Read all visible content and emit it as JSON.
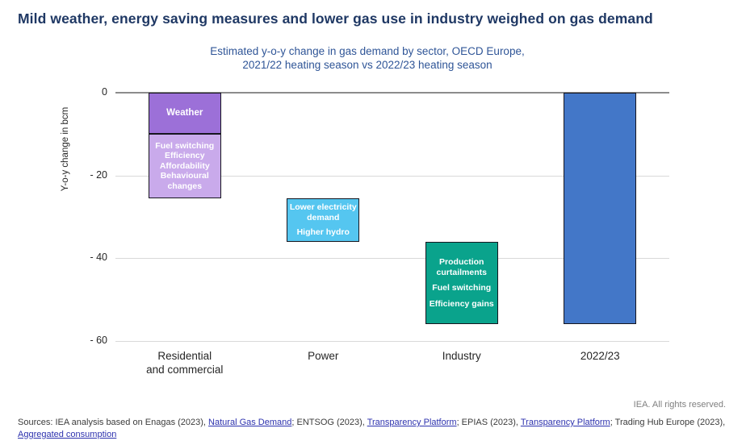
{
  "header": {
    "title": "Mild weather, energy saving measures and lower gas use in industry weighed on gas demand",
    "subtitle_line1": "Estimated y-o-y change in gas demand by sector, OECD Europe,",
    "subtitle_line2": "2021/22 heating season vs 2022/23 heating season"
  },
  "chart_data": {
    "type": "bar",
    "subtype": "waterfall",
    "title": "Estimated y-o-y change in gas demand by sector, OECD Europe, 2021/22 heating season vs 2022/23 heating season",
    "xlabel": "",
    "ylabel": "Y-o-y change in bcm",
    "ylim": [
      -60,
      0
    ],
    "yticks": [
      0,
      -20,
      -40,
      -60
    ],
    "ytick_labels": [
      "0",
      "- 20",
      "- 40",
      "- 60"
    ],
    "grid": "horizontal",
    "gridline_color": "#d9d9d9",
    "zero_line_color": "#8c8c8c",
    "categories": [
      "Residential\nand commercial",
      "Power",
      "Industry",
      "2022/23"
    ],
    "unit": "bcm",
    "segments": [
      {
        "category": 0,
        "from": 0,
        "to": -10,
        "color": "#9c70d8",
        "labels": [
          "Weather"
        ],
        "label_size": "large",
        "label_gap": 2
      },
      {
        "category": 0,
        "from": -10,
        "to": -25.5,
        "color": "#c9aaeb",
        "labels": [
          "Fuel switching",
          "Efficiency",
          "Affordability",
          "Behavioural changes"
        ],
        "label_size": "normal",
        "label_gap": 0
      },
      {
        "category": 1,
        "from": -25.5,
        "to": -36,
        "color": "#55c6f0",
        "labels": [
          "Lower electricity demand",
          "Higher hydro"
        ],
        "label_size": "normal",
        "label_gap": 6
      },
      {
        "category": 2,
        "from": -36,
        "to": -56,
        "color": "#0aa38c",
        "labels": [
          "Production curtailments",
          "Fuel switching",
          "Efficiency gains"
        ],
        "label_size": "normal",
        "label_gap": 7
      },
      {
        "category": 3,
        "from": 0,
        "to": -56,
        "color": "#4377c8",
        "labels": [],
        "label_size": "normal",
        "label_gap": 0
      }
    ]
  },
  "footer": {
    "copyright": "IEA. All rights reserved.",
    "sources_parts": [
      {
        "text": "Sources: IEA analysis based on Enagas (2023), "
      },
      {
        "link": "Natural Gas Demand"
      },
      {
        "text": "; ENTSOG (2023), "
      },
      {
        "link": "Transparency Platform"
      },
      {
        "text": "; EPIAS (2023), "
      },
      {
        "link": "Transparency Platform"
      },
      {
        "text": "; Trading Hub Europe (2023),"
      },
      {
        "break": true
      },
      {
        "link": "Aggregated consumption"
      }
    ]
  }
}
